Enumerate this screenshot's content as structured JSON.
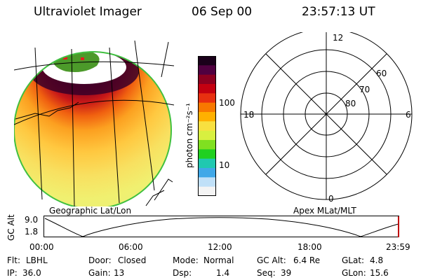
{
  "header": {
    "instrument": "Ultraviolet Imager",
    "date": "06 Sep 00",
    "time": "23:57:13 UT"
  },
  "image_panel": {
    "label": "Geographic Lat/Lon"
  },
  "colorbar": {
    "label": "photon cm⁻²s⁻¹",
    "ticks": [
      "100",
      "10"
    ],
    "colors": [
      "#1a001a",
      "#500040",
      "#8c0020",
      "#c40010",
      "#e83010",
      "#f87800",
      "#ffb000",
      "#f8e040",
      "#d8f040",
      "#80e020",
      "#20d020",
      "#20c8b0",
      "#40a8e8",
      "#c0e0f8",
      "#f4f4f4"
    ]
  },
  "polar_plot": {
    "label": "Apex MLat/MLT",
    "mlt_labels": [
      "12",
      "18",
      "6",
      "0"
    ],
    "lat_labels": [
      "60",
      "70",
      "80"
    ]
  },
  "altitude_plot": {
    "ylabel": "GC Alt",
    "yticks": [
      "9.0",
      "1.8"
    ],
    "xticks": [
      "00:00",
      "06:00",
      "12:00",
      "18:00",
      "23:59"
    ]
  },
  "info": {
    "row1": [
      {
        "label": "Flt:",
        "value": "LBHL"
      },
      {
        "label": "Door:",
        "value": "Closed"
      },
      {
        "label": "Mode:",
        "value": "Normal"
      },
      {
        "label": "GC Alt:",
        "value": "6.4 Re"
      },
      {
        "label": "GLat:",
        "value": "4.8"
      }
    ],
    "row2": [
      {
        "label": "IP:",
        "value": "36.0"
      },
      {
        "label": "Gain:",
        "value": "13"
      },
      {
        "label": "Dsp:",
        "value": "1.4"
      },
      {
        "label": "Seq:",
        "value": "39"
      },
      {
        "label": "GLon:",
        "value": "15.6"
      }
    ]
  }
}
